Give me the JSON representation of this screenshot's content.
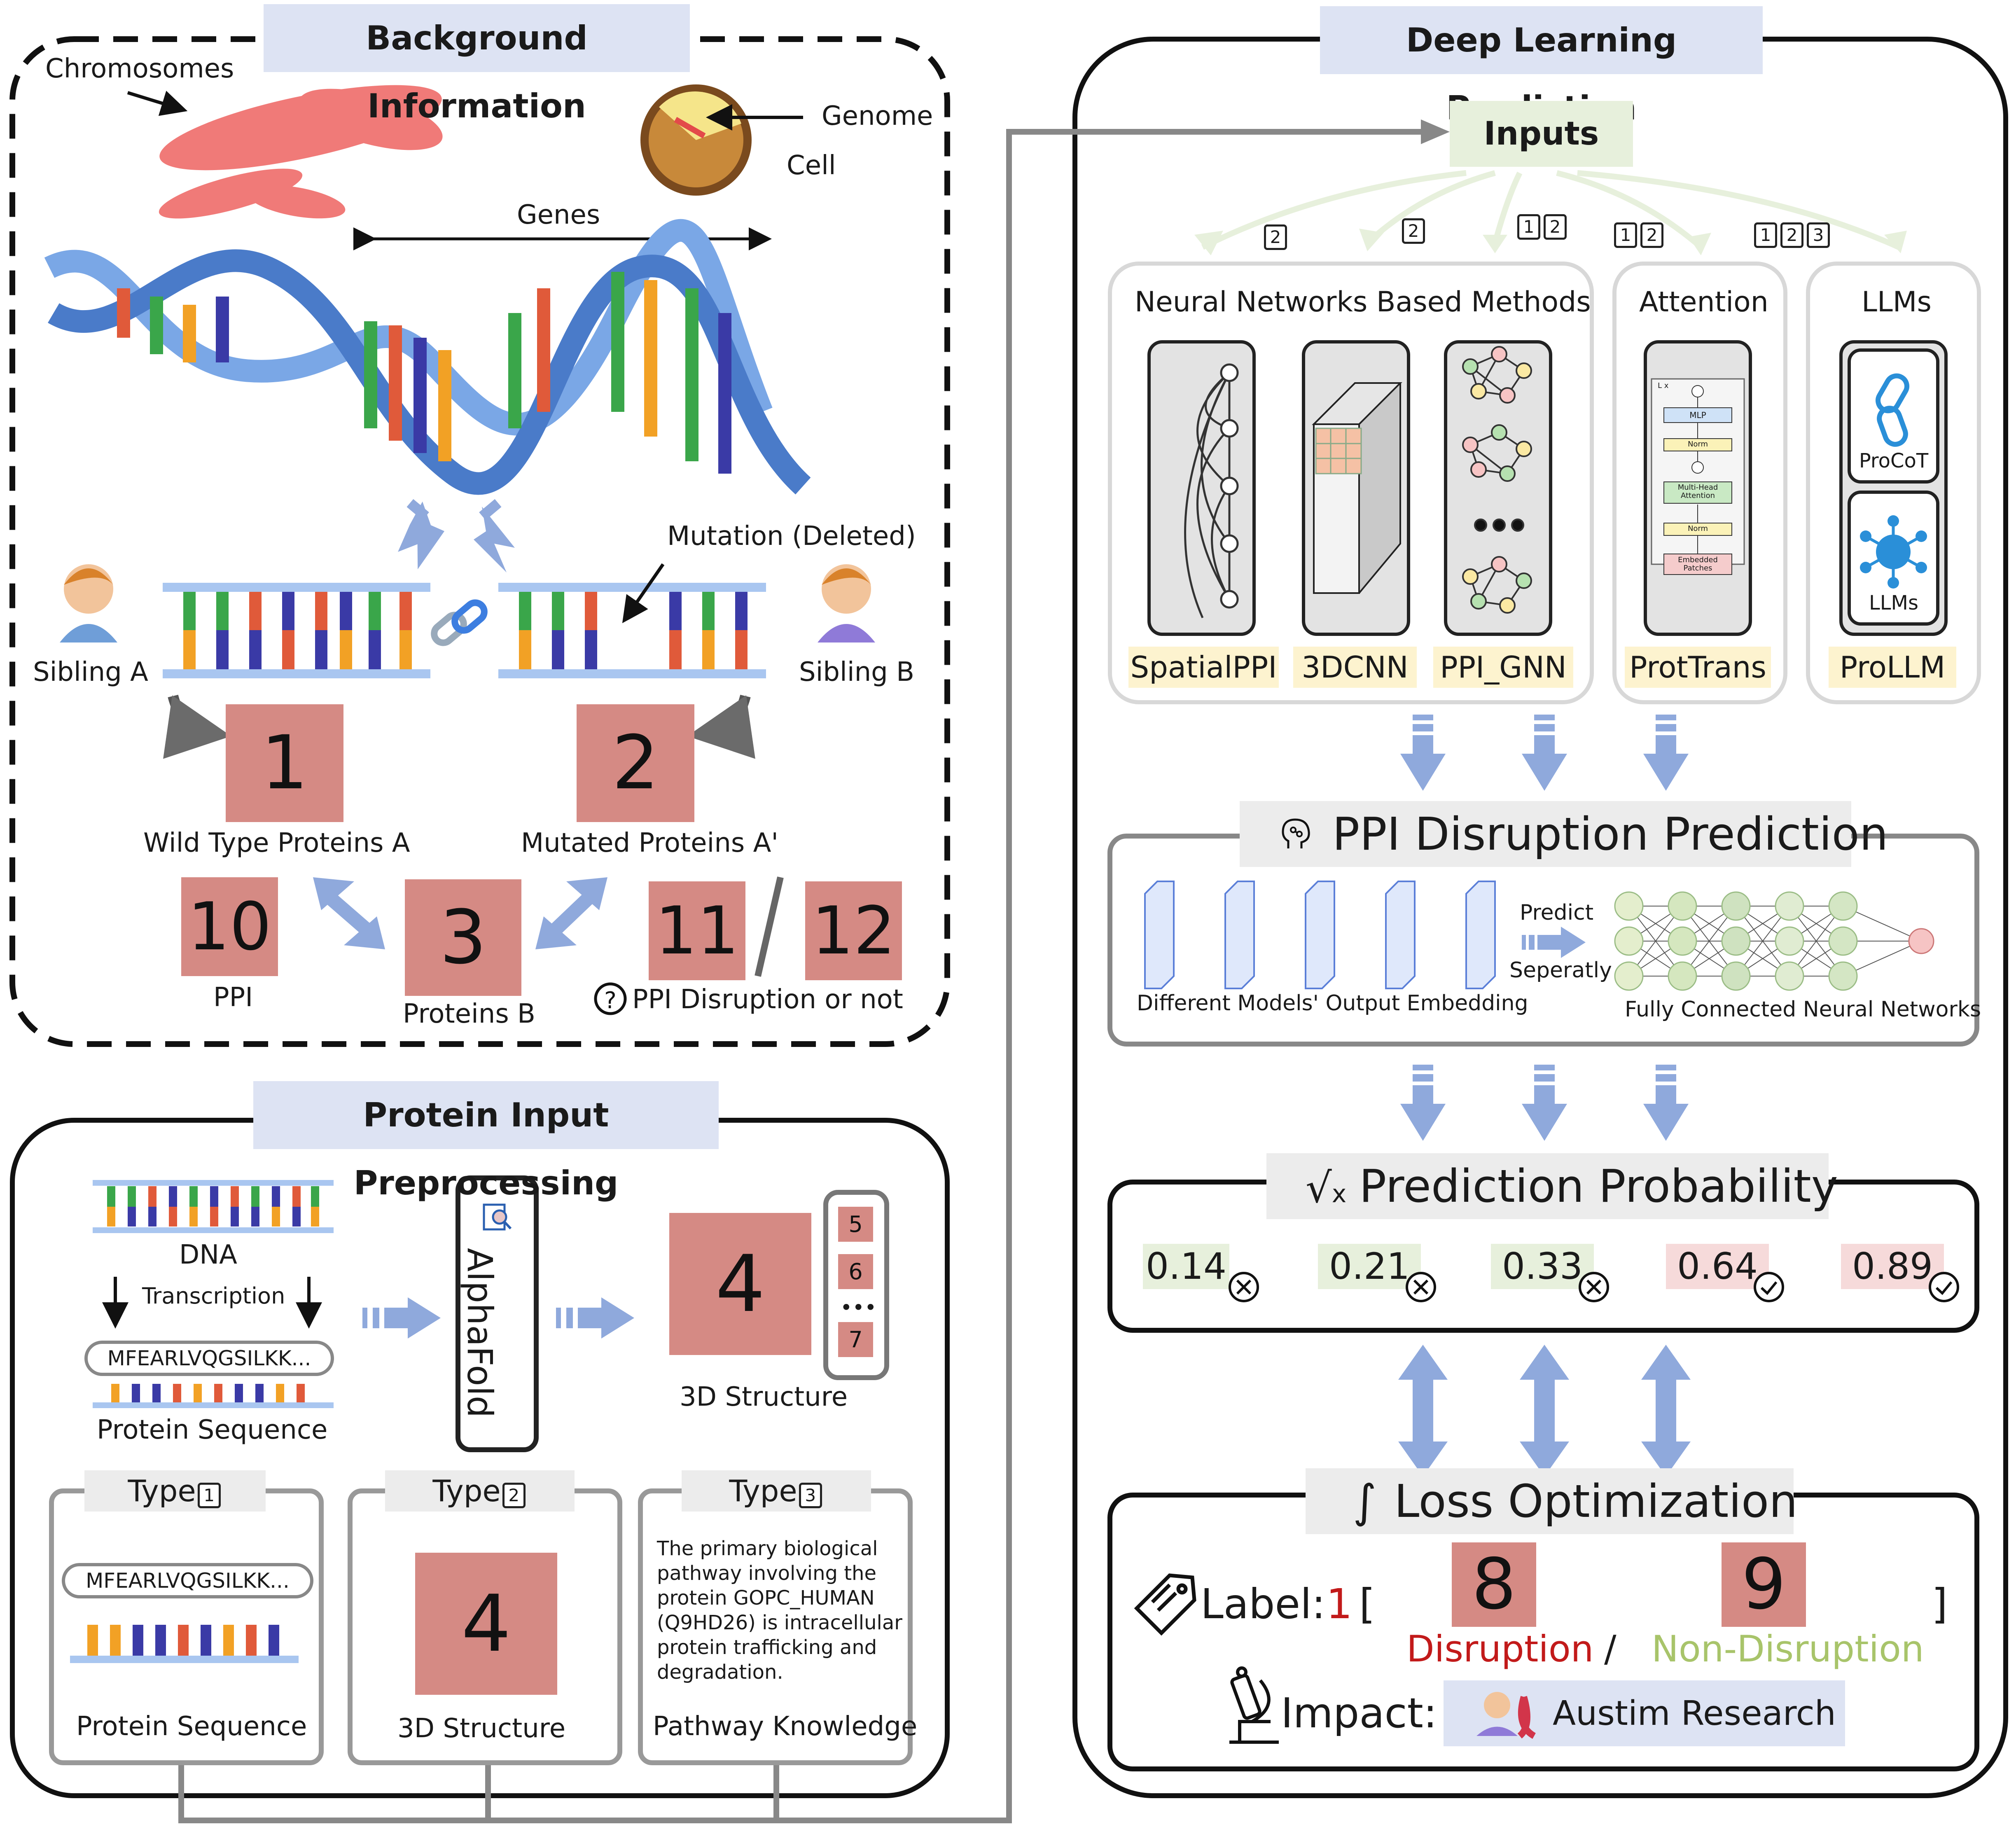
{
  "colors": {
    "protein_square": "#d58a84",
    "section_header": "#dde3f3",
    "prob_low": "#e7f0dc",
    "prob_high": "#f6dada",
    "arrow_blue": "#8fa9dc",
    "disruption": "#c21a1a",
    "non_disruption": "#a8c46a"
  },
  "background": {
    "title": "Background Information",
    "chromosomes": "Chromosomes",
    "genome": "Genome",
    "cell": "Cell",
    "genes": "Genes",
    "mutation": "Mutation (Deleted)",
    "sibling_a": "Sibling A",
    "sibling_b": "Sibling B",
    "wild_type": "Wild Type Proteins A",
    "mutated": "Mutated Proteins A'",
    "ppi": "PPI",
    "proteins_b": "Proteins B",
    "ppi_disruption": "PPI Disruption or not",
    "numbers": {
      "n1": "1",
      "n2": "2",
      "n3": "3",
      "n10": "10",
      "n11": "11",
      "n12": "12"
    }
  },
  "preprocessing": {
    "title": "Protein Input Preprocessing",
    "dna": "DNA",
    "transcription": "Transcription",
    "sequence_text": "MFEARLVQGSILKK...",
    "protein_sequence": "Protein Sequence",
    "alphafold": "AlphaFold",
    "struct_number": "4",
    "side_numbers": [
      "5",
      "6",
      "•••",
      "7"
    ],
    "structure_3d": "3D Structure",
    "type_word": "Type",
    "type1": {
      "num": "1",
      "seq": "MFEARLVQGSILKK...",
      "caption": "Protein Sequence"
    },
    "type2": {
      "num": "2",
      "big": "4",
      "caption": "3D Structure"
    },
    "type3": {
      "num": "3",
      "text": "The primary biological pathway involving the protein GOPC_HUMAN (Q9HD26) is intracellular protein trafficking and degradation.",
      "caption": "Pathway Knowledge"
    }
  },
  "deep_learning": {
    "title": "Deep Learning Prediction",
    "inputs": "Inputs",
    "badges": [
      [
        "2"
      ],
      [
        "2"
      ],
      [
        "1",
        "2"
      ],
      [
        "1",
        "2"
      ],
      [
        "1",
        "2",
        "3"
      ]
    ],
    "nn_methods": "Neural Networks Based Methods",
    "attention": "Attention",
    "llms": "LLMs",
    "models": [
      "SpatialPPI",
      "3DCNN",
      "PPI_GNN",
      "ProtTrans",
      "ProLLM"
    ],
    "procot": "ProCoT",
    "llms_inner": "LLMs",
    "transformer": {
      "lx": "L x",
      "mlp": "MLP",
      "norm": "Norm",
      "mha": "Multi-Head Attention",
      "embedded": "Embedded Patches"
    },
    "ppi_pred_title": "PPI Disruption Prediction",
    "predict": "Predict",
    "separately": "Seperatly",
    "output_embedding": "Different Models' Output Embedding",
    "fcnn": "Fully Connected Neural Networks",
    "prob_title": "Prediction Probability",
    "probabilities": [
      "0.14",
      "0.21",
      "0.33",
      "0.64",
      "0.89"
    ],
    "loss_title": "Loss Optimization",
    "label_word": "Label:",
    "label_value": "1",
    "label_open": "[",
    "label_close": "]",
    "n8": "8",
    "n9": "9",
    "disruption": "Disruption",
    "slash": "/",
    "non_disruption": "Non-Disruption",
    "impact": "Impact:",
    "autism": "Austim Research"
  }
}
